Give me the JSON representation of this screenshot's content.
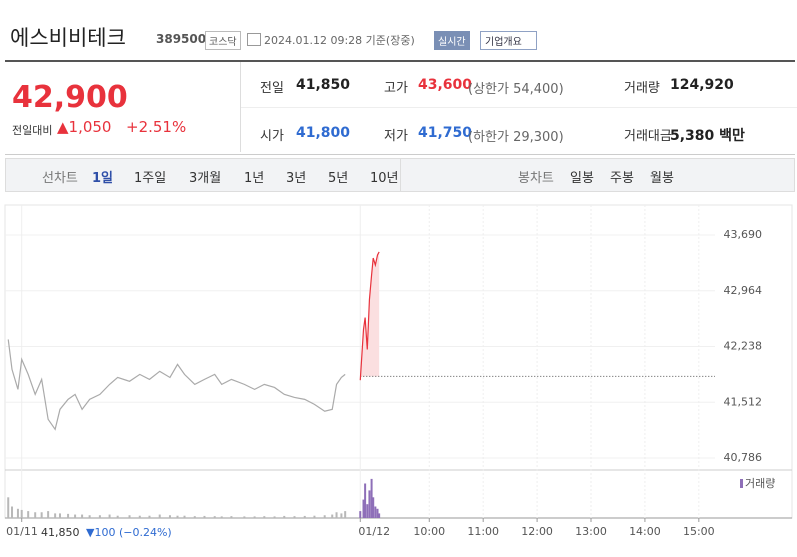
{
  "header": {
    "name": "에스비비테크",
    "code": "389500",
    "market": "코스닥",
    "time": "2024.01.12 09:28 기준(장중)",
    "realtime": "실시간",
    "overview": "기업개요"
  },
  "quote": {
    "price": "42,900",
    "change_label": "전일대비",
    "change": "▲1,050",
    "change_pct": "+2.51%",
    "stats": [
      [
        "전일",
        "41,850",
        ""
      ],
      [
        "고가",
        "43,600",
        "(상한가 54,400)"
      ],
      [
        "거래량",
        "124,920",
        ""
      ],
      [
        "시가",
        "41,800",
        ""
      ],
      [
        "저가",
        "41,750",
        "(하한가 29,300)"
      ],
      [
        "거래대금",
        "5,380 백만",
        ""
      ]
    ]
  },
  "tabs": {
    "line": "선차트",
    "periods": [
      "1일",
      "1주일",
      "3개월",
      "1년",
      "3년",
      "5년",
      "10년"
    ],
    "candle": "봉차트",
    "candle_periods": [
      "일봉",
      "주봉",
      "월봉"
    ]
  },
  "prev_day": {
    "close": "41,850",
    "change": "▼100 (−0.24%)"
  },
  "chart_data": {
    "type": "line",
    "ylim": [
      40656,
      44081
    ],
    "xlim": [
      2.13,
      15.3
    ],
    "vlim": [
      0,
      20000
    ],
    "volume_legend": "거래량",
    "ref_line": 41850,
    "yticks": [
      {
        "value": 43690,
        "label": "43,690"
      },
      {
        "value": 42964,
        "label": "42,964"
      },
      {
        "value": 42238,
        "label": "42,238"
      },
      {
        "value": 41512,
        "label": "41,512"
      },
      {
        "value": 40786,
        "label": "40,786"
      }
    ],
    "xticks": [
      {
        "value": 2.44,
        "label": "01/11"
      },
      {
        "value": 8.72,
        "label": "01/12"
      },
      {
        "value": 10,
        "label": "10:00"
      },
      {
        "value": 11,
        "label": "11:00"
      },
      {
        "value": 12,
        "label": "12:00"
      },
      {
        "value": 13,
        "label": "13:00"
      },
      {
        "value": 14,
        "label": "14:00"
      },
      {
        "value": 15,
        "label": "15:00"
      }
    ],
    "series": [
      {
        "color": "#aaaaaa",
        "vcolor": "#b8b8b8",
        "x": [
          2.19,
          2.26,
          2.37,
          2.44,
          2.56,
          2.69,
          2.81,
          2.93,
          3.06,
          3.15,
          3.3,
          3.43,
          3.56,
          3.7,
          3.89,
          4.07,
          4.22,
          4.44,
          4.63,
          4.81,
          5.0,
          5.19,
          5.33,
          5.46,
          5.65,
          5.83,
          6.02,
          6.15,
          6.33,
          6.57,
          6.76,
          6.94,
          7.13,
          7.31,
          7.5,
          7.69,
          7.87,
          8.06,
          8.2,
          8.28,
          8.37,
          8.44
        ],
        "values": [
          42330,
          41940,
          41680,
          42070,
          41875,
          41615,
          41810,
          41290,
          41160,
          41420,
          41550,
          41615,
          41420,
          41550,
          41615,
          41745,
          41835,
          41785,
          41875,
          41810,
          41915,
          41835,
          42005,
          41875,
          41745,
          41810,
          41875,
          41745,
          41810,
          41745,
          41680,
          41745,
          41705,
          41615,
          41575,
          41550,
          41485,
          41395,
          41420,
          41745,
          41835,
          41875
        ],
        "volume": [
          9000,
          5000,
          4000,
          3500,
          3000,
          2500,
          2500,
          3000,
          2000,
          2000,
          1800,
          1500,
          1500,
          1200,
          1200,
          1500,
          1000,
          1200,
          1000,
          1000,
          1500,
          1200,
          1000,
          1000,
          800,
          900,
          800,
          700,
          800,
          700,
          700,
          800,
          700,
          900,
          800,
          900,
          1000,
          1200,
          1500,
          2500,
          2000,
          3000
        ]
      },
      {
        "color": "#e8323c",
        "vcolor": "#8e6fb8",
        "x": [
          8.72,
          8.78,
          8.81,
          8.85,
          8.89,
          8.93,
          8.96,
          9.0,
          9.04,
          9.07
        ],
        "values": [
          41800,
          42460,
          42615,
          42200,
          42850,
          43170,
          43390,
          43300,
          43430,
          43470
        ],
        "volume": [
          3000,
          8000,
          15000,
          6000,
          12000,
          17000,
          9000,
          5000,
          4000,
          2000
        ]
      }
    ]
  }
}
